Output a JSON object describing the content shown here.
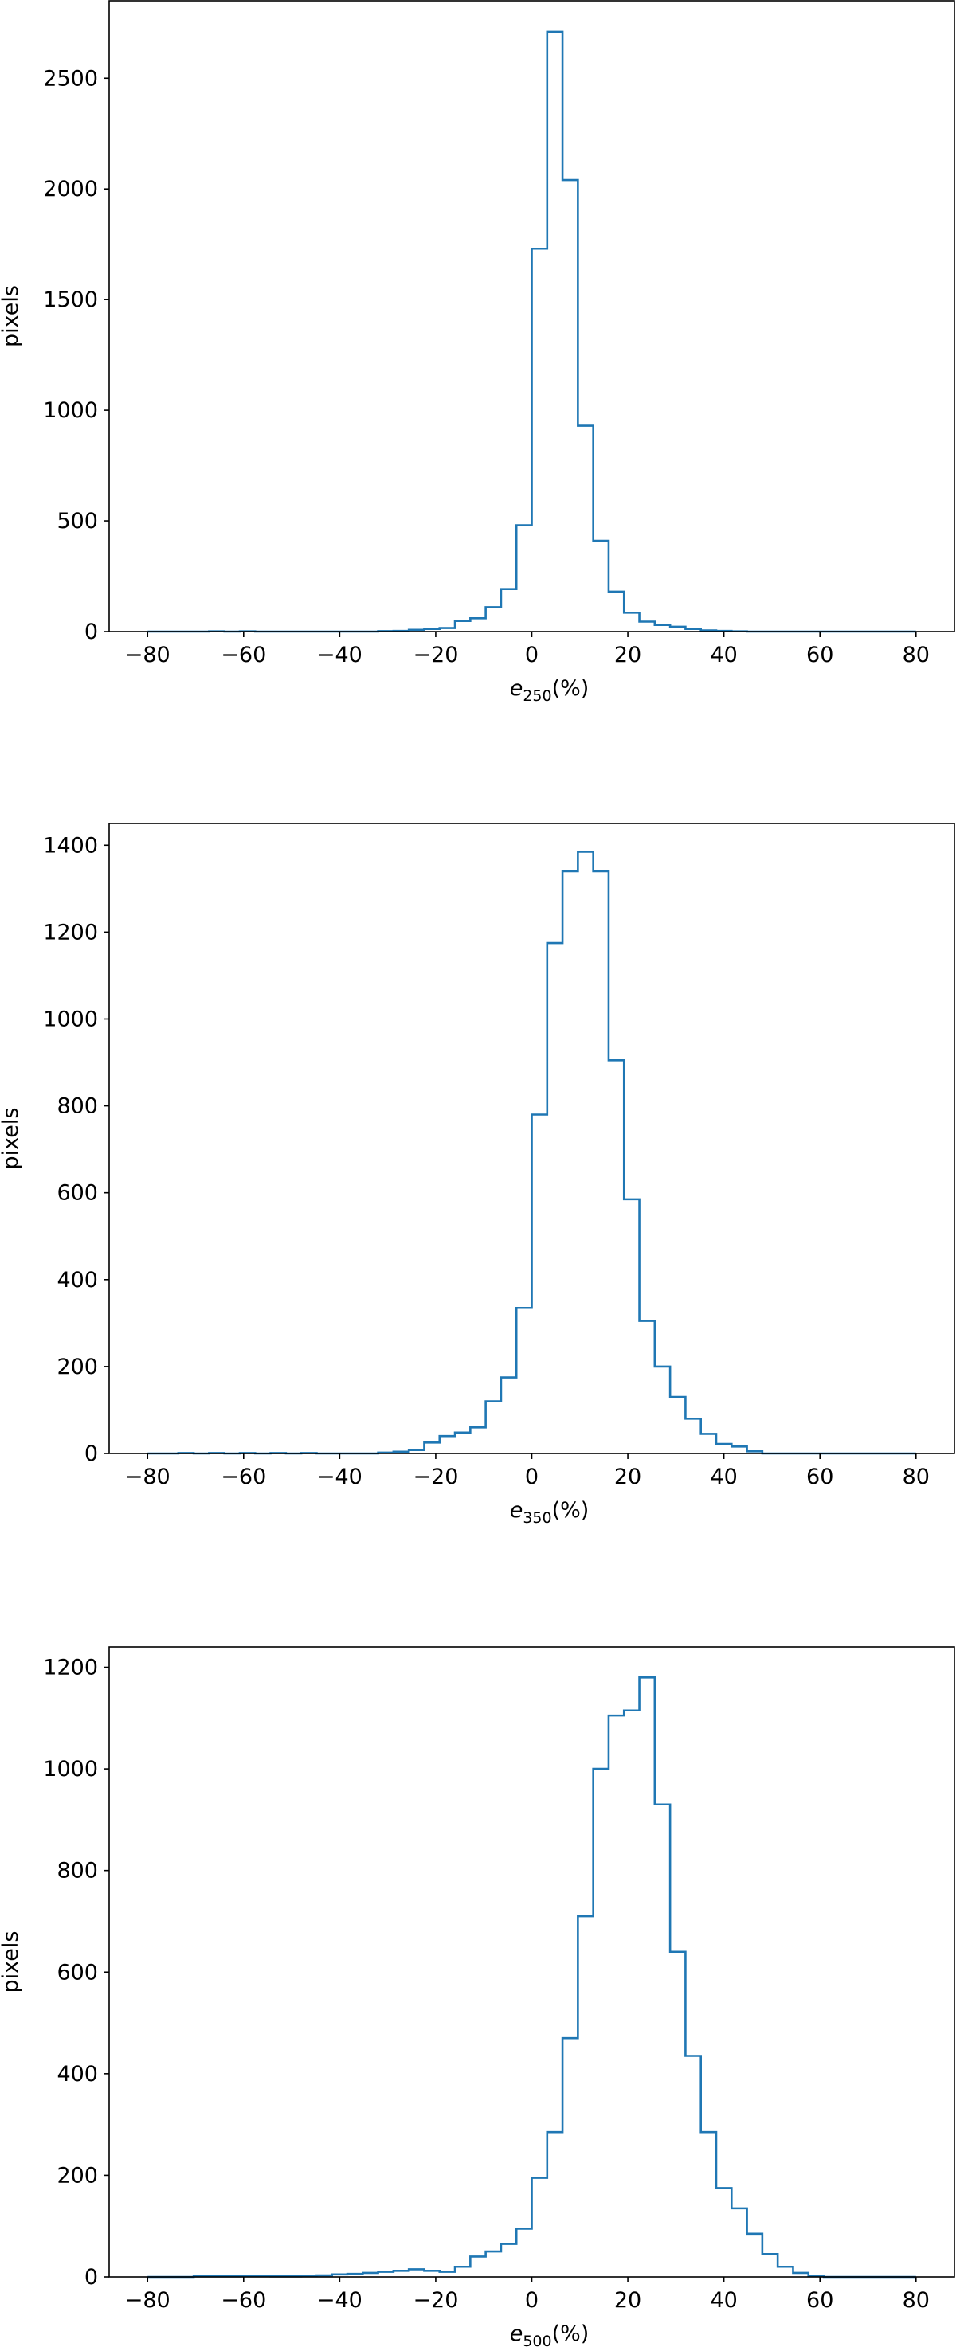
{
  "chart_data": [
    {
      "type": "histogram",
      "xlabel_main": "e",
      "xlabel_sub": "250",
      "xlabel_suffix": "(%)",
      "ylabel": "pixels",
      "xlim": [
        -88,
        88
      ],
      "ylim": [
        0,
        2850
      ],
      "xticks": [
        -80,
        -60,
        -40,
        -20,
        0,
        20,
        40,
        60,
        80
      ],
      "xtick_labels": [
        "−80",
        "−60",
        "−40",
        "−20",
        "0",
        "20",
        "40",
        "60",
        "80"
      ],
      "yticks": [
        0,
        500,
        1000,
        1500,
        2000,
        2500
      ],
      "ytick_labels": [
        "0",
        "500",
        "1000",
        "1500",
        "2000",
        "2500"
      ],
      "grid": false,
      "legend": false,
      "color": "#1f77b4",
      "bin_start": -80,
      "bin_width": 3.2,
      "counts": [
        0,
        0,
        0,
        0,
        1,
        0,
        1,
        0,
        0,
        0,
        0,
        0,
        0,
        0,
        0,
        2,
        3,
        8,
        12,
        16,
        48,
        60,
        110,
        192,
        480,
        1730,
        2710,
        2040,
        930,
        410,
        180,
        85,
        45,
        30,
        22,
        12,
        5,
        3,
        1,
        0,
        0,
        0,
        0,
        0,
        0,
        0,
        0,
        0,
        0,
        0
      ]
    },
    {
      "type": "histogram",
      "xlabel_main": "e",
      "xlabel_sub": "350",
      "xlabel_suffix": "(%)",
      "ylabel": "pixels",
      "xlim": [
        -88,
        88
      ],
      "ylim": [
        0,
        1450
      ],
      "xticks": [
        -80,
        -60,
        -40,
        -20,
        0,
        20,
        40,
        60,
        80
      ],
      "xtick_labels": [
        "−80",
        "−60",
        "−40",
        "−20",
        "0",
        "20",
        "40",
        "60",
        "80"
      ],
      "yticks": [
        0,
        200,
        400,
        600,
        800,
        1000,
        1200,
        1400
      ],
      "ytick_labels": [
        "0",
        "200",
        "400",
        "600",
        "800",
        "1000",
        "1200",
        "1400"
      ],
      "grid": false,
      "legend": false,
      "color": "#1f77b4",
      "bin_start": -80,
      "bin_width": 3.2,
      "counts": [
        0,
        0,
        1,
        0,
        1,
        0,
        1,
        0,
        1,
        0,
        1,
        0,
        0,
        0,
        0,
        2,
        4,
        8,
        25,
        40,
        48,
        60,
        120,
        175,
        335,
        780,
        1175,
        1340,
        1385,
        1340,
        905,
        585,
        305,
        200,
        130,
        80,
        45,
        22,
        16,
        5,
        0,
        0,
        0,
        0,
        0,
        0,
        0,
        0,
        0,
        0
      ]
    },
    {
      "type": "histogram",
      "xlabel_main": "e",
      "xlabel_sub": "500",
      "xlabel_suffix": "(%)",
      "ylabel": "pixels",
      "xlim": [
        -88,
        88
      ],
      "ylim": [
        0,
        1240
      ],
      "xticks": [
        -80,
        -60,
        -40,
        -20,
        0,
        20,
        40,
        60,
        80
      ],
      "xtick_labels": [
        "−80",
        "−60",
        "−40",
        "−20",
        "0",
        "20",
        "40",
        "60",
        "80"
      ],
      "yticks": [
        0,
        200,
        400,
        600,
        800,
        1000,
        1200
      ],
      "ytick_labels": [
        "0",
        "200",
        "400",
        "600",
        "800",
        "1000",
        "1200"
      ],
      "grid": false,
      "legend": false,
      "color": "#1f77b4",
      "bin_start": -80,
      "bin_width": 3.2,
      "counts": [
        0,
        0,
        0,
        1,
        1,
        1,
        2,
        2,
        1,
        1,
        2,
        3,
        5,
        6,
        8,
        10,
        12,
        15,
        12,
        10,
        20,
        40,
        50,
        65,
        95,
        195,
        285,
        470,
        710,
        1000,
        1105,
        1115,
        1180,
        930,
        640,
        435,
        285,
        175,
        135,
        85,
        45,
        20,
        8,
        2,
        0,
        0,
        0,
        0,
        0,
        0
      ]
    }
  ]
}
